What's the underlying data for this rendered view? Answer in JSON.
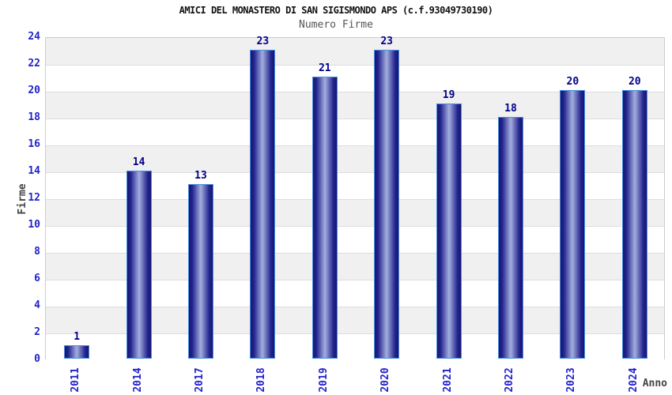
{
  "header": {
    "title": "AMICI DEL MONASTERO DI SAN SIGISMONDO APS (c.f.93049730190)",
    "subtitle": "Numero Firme"
  },
  "chart_data": {
    "type": "bar",
    "title": "AMICI DEL MONASTERO DI SAN SIGISMONDO APS (c.f.93049730190)",
    "subtitle": "Numero Firme",
    "xlabel": "Anno",
    "ylabel": "Firme",
    "categories": [
      "2011",
      "2014",
      "2017",
      "2018",
      "2019",
      "2020",
      "2021",
      "2022",
      "2023",
      "2024"
    ],
    "values": [
      1,
      14,
      13,
      23,
      21,
      23,
      19,
      18,
      20,
      20
    ],
    "ylim": [
      0,
      24
    ],
    "ytick_step": 2,
    "yticks": [
      0,
      2,
      4,
      6,
      8,
      10,
      12,
      14,
      16,
      18,
      20,
      22,
      24
    ],
    "grid": "horizontal alternating bands every 2 units, gray band at top (22-24)",
    "legend": "none",
    "colors": {
      "bar_border": "#4a90e2",
      "bar_edge_dark": "#17176e",
      "bar_inner_dark": "#23238e",
      "bar_center_light": "#a3aede",
      "tick_label_blue": "#2222cc",
      "value_label_navy": "#00008b",
      "band_gray": "#f0f0f0",
      "band_white": "#ffffff",
      "gridline": "#dddddd",
      "plot_border": "#cccccc",
      "axis_title_gray": "#444444",
      "title_color": "#111111",
      "subtitle_color": "#555555",
      "background": "#ffffff"
    }
  }
}
